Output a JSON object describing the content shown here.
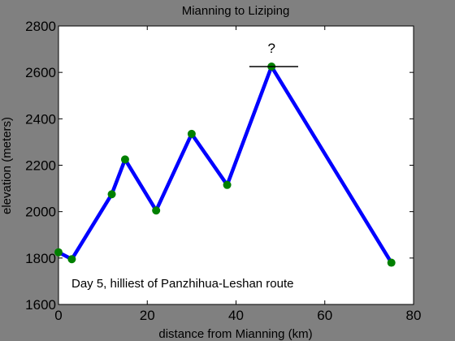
{
  "chart_data": {
    "type": "line",
    "title": "Mianning to Liziping",
    "xlabel": "distance from Mianning (km)",
    "ylabel": "elevation (meters)",
    "xlim": [
      0,
      80
    ],
    "ylim": [
      1600,
      2800
    ],
    "x_ticks": [
      0,
      20,
      40,
      60,
      80
    ],
    "y_ticks": [
      1600,
      1800,
      2000,
      2200,
      2400,
      2600,
      2800
    ],
    "grid": false,
    "series": [
      {
        "x": [
          0,
          3,
          12,
          15,
          22,
          30,
          38,
          48,
          75
        ],
        "y": [
          1825,
          1795,
          2075,
          2225,
          2005,
          2335,
          2115,
          2625,
          1780
        ],
        "line_color": "#0000ff",
        "marker_color": "#008000"
      }
    ],
    "annotations": [
      {
        "text": "Day 5, hilliest of Panzhihua-Leshan route"
      },
      {
        "text": "?"
      }
    ],
    "uncertainty_bar": {
      "x_range": [
        43,
        54
      ],
      "y": 2625
    },
    "colors": {
      "background": "#808080",
      "plot_area": "#ffffff"
    }
  }
}
